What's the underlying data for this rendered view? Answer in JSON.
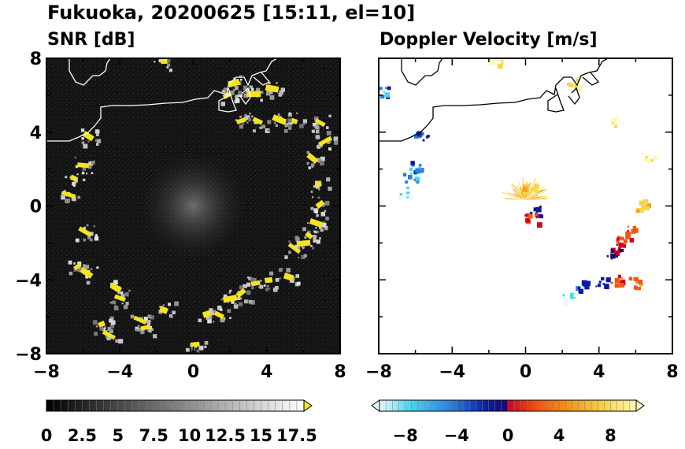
{
  "figure": {
    "title": "Fukuoka, 20200625 [15:11, el=10]"
  },
  "chart_data": [
    {
      "type": "heatmap",
      "title": "SNR [dB]",
      "xlim": [
        -8,
        8
      ],
      "ylim": [
        -8,
        8
      ],
      "x_ticks": [
        "−8",
        "−4",
        "0",
        "4",
        "8"
      ],
      "y_ticks": [
        "8",
        "4",
        "0",
        "−4",
        "−8"
      ],
      "grid": false,
      "background": "#101010",
      "colorbar": {
        "min": 0,
        "max": 18,
        "step": 0.5,
        "tick_labels": [
          "0",
          "2.5",
          "5",
          "7.5",
          "10",
          "12.5",
          "15",
          "17.5"
        ],
        "extend": "max",
        "colors": [
          "#000000",
          "#ffffff"
        ],
        "over_color": "#f4e41e"
      },
      "echo_clusters": [
        {
          "x": -6.8,
          "y": 0.6
        },
        {
          "x": -6.5,
          "y": 1.5
        },
        {
          "x": -6.0,
          "y": 2.2
        },
        {
          "x": -5.9,
          "y": -1.4
        },
        {
          "x": -6.3,
          "y": -3.3
        },
        {
          "x": -5.8,
          "y": -3.6
        },
        {
          "x": -4.2,
          "y": -4.4
        },
        {
          "x": -4.0,
          "y": -5.0
        },
        {
          "x": -5.0,
          "y": -6.4
        },
        {
          "x": -4.6,
          "y": -7.0
        },
        {
          "x": -2.9,
          "y": -6.2
        },
        {
          "x": -2.6,
          "y": -6.6
        },
        {
          "x": -1.6,
          "y": -5.6
        },
        {
          "x": 0.1,
          "y": -7.5
        },
        {
          "x": 0.8,
          "y": -5.8
        },
        {
          "x": 1.4,
          "y": -5.9
        },
        {
          "x": 2.0,
          "y": -5.0
        },
        {
          "x": 2.6,
          "y": -4.7
        },
        {
          "x": 3.4,
          "y": -4.2
        },
        {
          "x": 4.1,
          "y": -4.0
        },
        {
          "x": 5.2,
          "y": -3.8
        },
        {
          "x": 5.5,
          "y": -2.3
        },
        {
          "x": 6.0,
          "y": -2.0
        },
        {
          "x": 6.3,
          "y": -1.6
        },
        {
          "x": 6.7,
          "y": -0.9
        },
        {
          "x": 6.9,
          "y": 0.1
        },
        {
          "x": 6.8,
          "y": 1.2
        },
        {
          "x": 6.5,
          "y": 2.6
        },
        {
          "x": 7.2,
          "y": 3.5
        },
        {
          "x": 6.9,
          "y": 4.5
        },
        {
          "x": 5.5,
          "y": 4.6
        },
        {
          "x": 4.7,
          "y": 4.7
        },
        {
          "x": 3.5,
          "y": 4.6
        },
        {
          "x": 2.6,
          "y": 4.6
        },
        {
          "x": 1.9,
          "y": 6.0
        },
        {
          "x": 2.2,
          "y": 6.7
        },
        {
          "x": 3.3,
          "y": 6.1
        },
        {
          "x": 4.3,
          "y": 6.4
        },
        {
          "x": -5.7,
          "y": 3.8
        },
        {
          "x": -1.6,
          "y": 7.9
        }
      ]
    },
    {
      "type": "heatmap",
      "title": "Doppler Velocity [m/s]",
      "xlim": [
        -8,
        8
      ],
      "ylim": [
        -8,
        8
      ],
      "x_ticks": [
        "−8",
        "−4",
        "0",
        "4",
        "8"
      ],
      "y_ticks": [],
      "grid": false,
      "background": "#ffffff",
      "colorbar": {
        "min": -10,
        "max": 10,
        "step": 0.5,
        "tick_labels": [
          "−8",
          "−4",
          "0",
          "4",
          "8"
        ],
        "extend": "both",
        "colors": [
          "#e8faff",
          "#4fd4ee",
          "#2a7fe0",
          "#0a1aa8",
          "#1a0a6a",
          "#d4001e",
          "#ee5a12",
          "#f4a01e",
          "#f8d448",
          "#fff8b8"
        ]
      },
      "echo_clusters": [
        {
          "x": -6.7,
          "y": 0.8,
          "v": -8
        },
        {
          "x": -6.3,
          "y": 1.6,
          "v": -6
        },
        {
          "x": -6.1,
          "y": 2.2,
          "v": -5
        },
        {
          "x": -5.7,
          "y": 3.8,
          "v": -3
        },
        {
          "x": -7.9,
          "y": 6.2,
          "v": -5
        },
        {
          "x": 0.2,
          "y": 1.0,
          "v": 7
        },
        {
          "x": 0.5,
          "y": -0.2,
          "v": -2
        },
        {
          "x": 0.3,
          "y": -0.6,
          "v": 1
        },
        {
          "x": 5.7,
          "y": -1.3,
          "v": 3
        },
        {
          "x": 5.3,
          "y": -1.8,
          "v": 2
        },
        {
          "x": 5.0,
          "y": -2.2,
          "v": 1
        },
        {
          "x": 4.8,
          "y": -2.5,
          "v": -1
        },
        {
          "x": 6.3,
          "y": 0.1,
          "v": 6
        },
        {
          "x": 5.0,
          "y": -3.9,
          "v": 2
        },
        {
          "x": 4.0,
          "y": -4.1,
          "v": -3
        },
        {
          "x": 3.0,
          "y": -4.3,
          "v": -4
        },
        {
          "x": 2.4,
          "y": -4.9,
          "v": -8
        },
        {
          "x": 6.0,
          "y": -4.1,
          "v": 3
        },
        {
          "x": 5.0,
          "y": 4.6,
          "v": 8
        },
        {
          "x": 6.6,
          "y": 2.6,
          "v": 8
        },
        {
          "x": 2.6,
          "y": 6.7,
          "v": 8
        },
        {
          "x": -1.7,
          "y": 7.9,
          "v": 9
        }
      ]
    }
  ]
}
